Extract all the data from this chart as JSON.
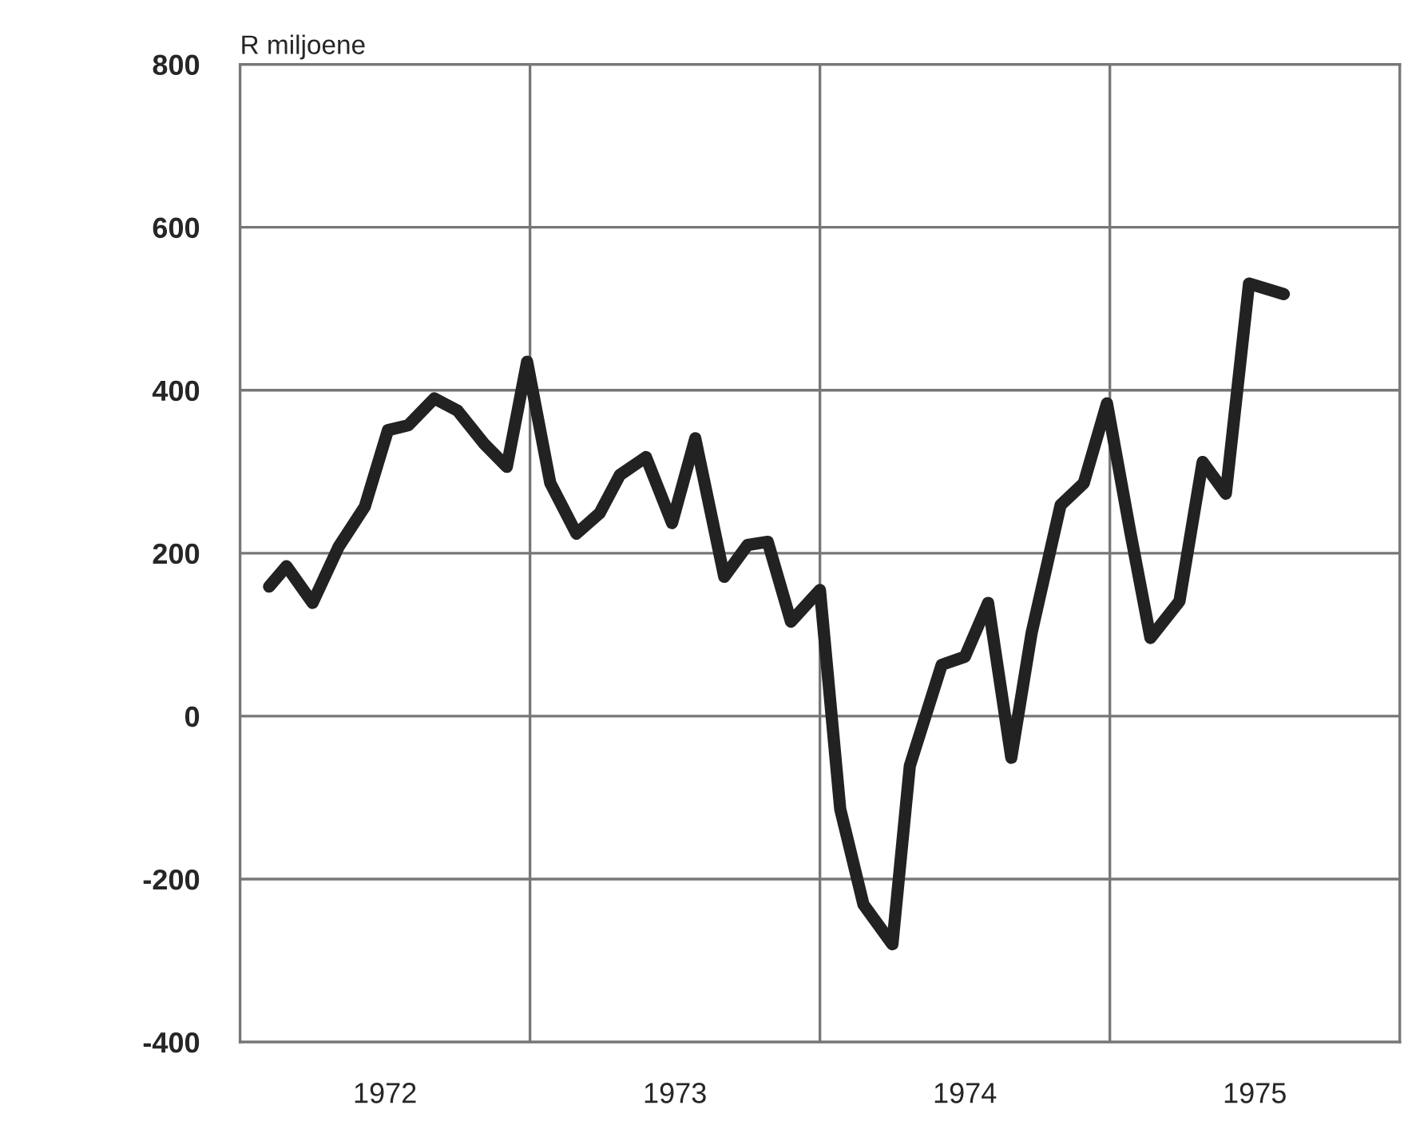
{
  "chart_data": {
    "type": "line",
    "ylabel": "R miljoene",
    "x": [
      1972.1,
      1972.16,
      1972.25,
      1972.34,
      1972.43,
      1972.51,
      1972.58,
      1972.67,
      1972.75,
      1972.84,
      1972.92,
      1972.99,
      1973.07,
      1973.16,
      1973.24,
      1973.31,
      1973.4,
      1973.49,
      1973.57,
      1973.67,
      1973.75,
      1973.82,
      1973.9,
      1974.0,
      1974.07,
      1974.15,
      1974.25,
      1974.31,
      1974.42,
      1974.5,
      1974.58,
      1974.66,
      1974.73,
      1974.83,
      1974.91,
      1974.99,
      1975.07,
      1975.14,
      1975.24,
      1975.32,
      1975.4,
      1975.48,
      1975.6
    ],
    "series": [
      {
        "color": "#222222",
        "values": [
          159,
          184,
          139,
          208,
          257,
          351,
          357,
          390,
          375,
          335,
          306,
          435,
          286,
          224,
          249,
          296,
          318,
          237,
          341,
          171,
          210,
          214,
          116,
          155,
          -114,
          -231,
          -280,
          -61,
          63,
          73,
          139,
          -51,
          102,
          259,
          286,
          384,
          227,
          96,
          141,
          312,
          273,
          531,
          518
        ]
      }
    ],
    "xlim": [
      1972,
      1976
    ],
    "ylim": [
      -400,
      800
    ],
    "xticks": [
      {
        "value": 1972.5,
        "label": "1972"
      },
      {
        "value": 1973.5,
        "label": "1973"
      },
      {
        "value": 1974.5,
        "label": "1974"
      },
      {
        "value": 1975.5,
        "label": "1975"
      }
    ],
    "yticks": [
      -400,
      -200,
      0,
      200,
      400,
      600,
      800
    ],
    "grid": "y",
    "ref_lines": [
      {
        "axis": "x",
        "value": 1973,
        "color": "#777777"
      },
      {
        "axis": "x",
        "value": 1974,
        "color": "#777777"
      },
      {
        "axis": "x",
        "value": 1975,
        "color": "#777777"
      }
    ],
    "line_style": "solid",
    "marker": "none"
  }
}
